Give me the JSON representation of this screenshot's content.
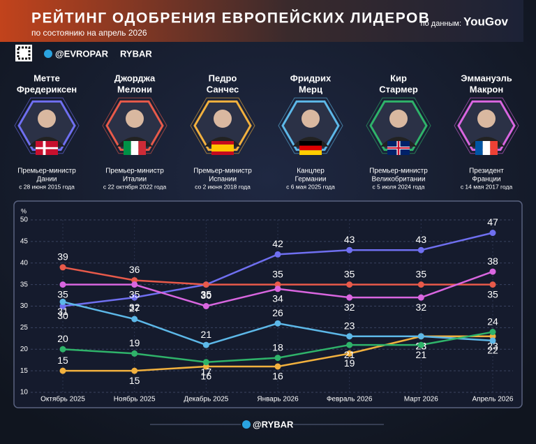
{
  "header": {
    "title": "РЕЙТИНГ ОДОБРЕНИЯ ЕВРОПЕЙСКИХ ЛИДЕРОВ",
    "subtitle": "по состоянию на апрель 2026",
    "source_label": "по данным:",
    "source": "YouGov",
    "handle": "@EVROPAR",
    "brand": "RYBAR"
  },
  "footer": {
    "handle": "@RYBAR"
  },
  "leaders": [
    {
      "name": [
        "Метте",
        "Фредериксен"
      ],
      "role": [
        "Премьер-министр",
        "Дании"
      ],
      "since": "с 28 июня 2015 года",
      "color": "#6f6ff0",
      "flag": "dk"
    },
    {
      "name": [
        "Джорджа",
        "Мелони"
      ],
      "role": [
        "Премьер-министр",
        "Италии"
      ],
      "since": "с 22 октября 2022 года",
      "color": "#e85a4a",
      "flag": "it"
    },
    {
      "name": [
        "Педро",
        "Санчес"
      ],
      "role": [
        "Премьер-министр",
        "Испании"
      ],
      "since": "со 2 июня 2018 года",
      "color": "#f2b13e",
      "flag": "es"
    },
    {
      "name": [
        "Фридрих",
        "Мерц"
      ],
      "role": [
        "Канцлер",
        "Германии"
      ],
      "since": "с 6 мая 2025 года",
      "color": "#5db8e8",
      "flag": "de"
    },
    {
      "name": [
        "Кир",
        "Стармер"
      ],
      "role": [
        "Премьер-министр",
        "Великобритании"
      ],
      "since": "с 5 июля 2024 года",
      "color": "#2fb36a",
      "flag": "uk"
    },
    {
      "name": [
        "Эммануэль",
        "Макрон"
      ],
      "role": [
        "Президент",
        "Франции"
      ],
      "since": "с 14 мая 2017 года",
      "color": "#d966e0",
      "flag": "fr"
    }
  ],
  "chart_data": {
    "type": "line",
    "y_unit": "%",
    "categories": [
      "Октябрь 2025",
      "Ноябрь 2025",
      "Декабрь 2025",
      "Январь 2026",
      "Февраль 2026",
      "Март 2026",
      "Апрель 2026"
    ],
    "series": [
      {
        "color": "#6f6ff0",
        "values": [
          30,
          32,
          35,
          42,
          43,
          43,
          47
        ]
      },
      {
        "color": "#e85a4a",
        "values": [
          39,
          36,
          35,
          35,
          35,
          35,
          35
        ]
      },
      {
        "color": "#f2b13e",
        "values": [
          15,
          15,
          16,
          16,
          19,
          23,
          23
        ]
      },
      {
        "color": "#5db8e8",
        "values": [
          31,
          27,
          21,
          26,
          23,
          23,
          22
        ]
      },
      {
        "color": "#2fb36a",
        "values": [
          20,
          19,
          17,
          18,
          21,
          21,
          24
        ]
      },
      {
        "color": "#d966e0",
        "values": [
          35,
          35,
          30,
          34,
          32,
          32,
          38
        ]
      }
    ],
    "ylim": [
      10,
      50
    ],
    "yticks": [
      10,
      15,
      20,
      25,
      30,
      35,
      40,
      45,
      50
    ],
    "grid": true
  }
}
